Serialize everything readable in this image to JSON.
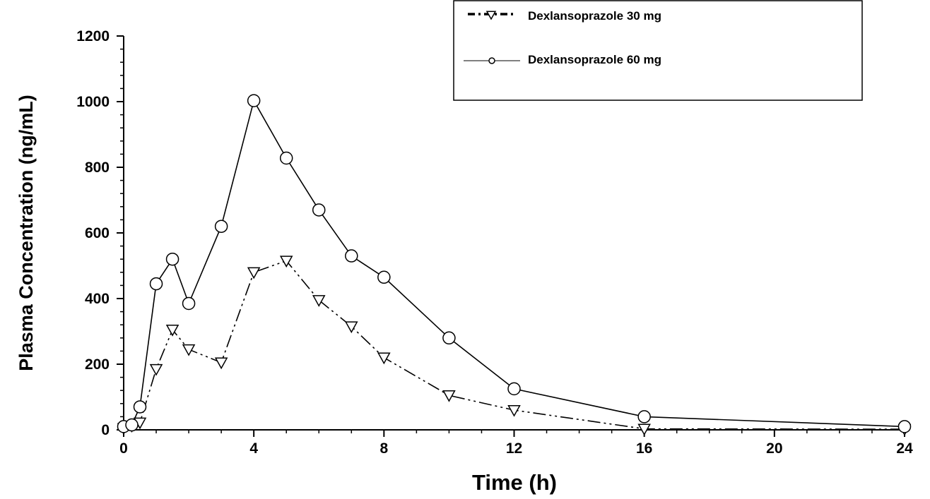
{
  "chart_data": {
    "type": "line",
    "title": "",
    "xlabel": "Time (h)",
    "ylabel": "Plasma Concentration (ng/mL)",
    "xlim": [
      0,
      24
    ],
    "ylim": [
      0,
      1200
    ],
    "xticks": [
      0,
      4,
      8,
      12,
      16,
      20,
      24
    ],
    "yticks": [
      0,
      200,
      400,
      600,
      800,
      1000,
      1200
    ],
    "grid": false,
    "legend_position": "top-right",
    "series": [
      {
        "name": "Dexlansoprazole 30 mg",
        "marker": "triangle-down",
        "line_style": "dash-dot-dot",
        "x": [
          0,
          0.25,
          0.5,
          1,
          1.5,
          2,
          3,
          4,
          5,
          6,
          7,
          8,
          10,
          12,
          16,
          24
        ],
        "y": [
          5,
          12,
          22,
          185,
          305,
          245,
          205,
          480,
          515,
          395,
          315,
          220,
          105,
          60,
          3,
          2
        ]
      },
      {
        "name": "Dexlansoprazole 60 mg",
        "marker": "circle",
        "line_style": "solid",
        "x": [
          0,
          0.25,
          0.5,
          1,
          1.5,
          2,
          3,
          4,
          5,
          6,
          7,
          8,
          10,
          12,
          16,
          24
        ],
        "y": [
          10,
          15,
          70,
          445,
          520,
          385,
          620,
          1003,
          828,
          670,
          530,
          465,
          280,
          125,
          40,
          10
        ]
      }
    ]
  }
}
